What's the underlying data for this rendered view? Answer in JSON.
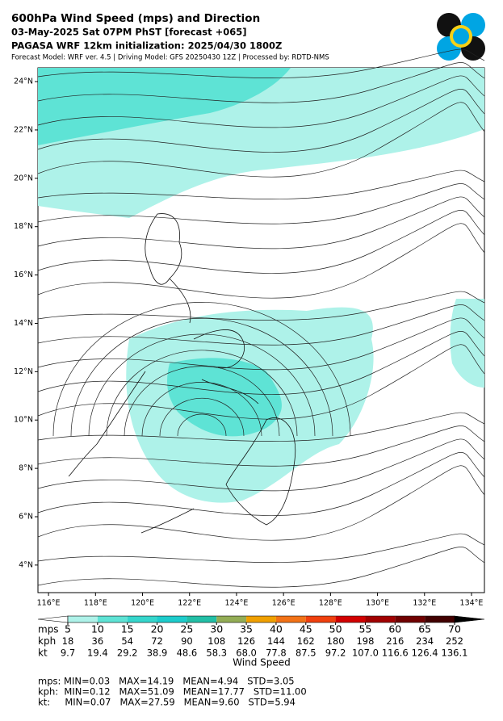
{
  "header": {
    "title": "600hPa Wind Speed (mps) and Direction",
    "line2": "03-May-2025 Sat 07PM PhST [forecast +065]",
    "line3": "PAGASA WRF 12km initialization: 2025/04/30 1800Z",
    "line4": "Forecast Model: WRF ver. 4.5 | Driving Model: GFS 20250430 12Z | Processed by: RDTD-NMS"
  },
  "map": {
    "xlim": [
      115.55,
      134.55
    ],
    "ylim": [
      2.86,
      24.57
    ],
    "xticks": [
      {
        "value": 116,
        "label": "116°E"
      },
      {
        "value": 118,
        "label": "118°E"
      },
      {
        "value": 120,
        "label": "120°E"
      },
      {
        "value": 122,
        "label": "122°E"
      },
      {
        "value": 124,
        "label": "124°E"
      },
      {
        "value": 126,
        "label": "126°E"
      },
      {
        "value": 128,
        "label": "128°E"
      },
      {
        "value": 130,
        "label": "130°E"
      },
      {
        "value": 132,
        "label": "132°E"
      },
      {
        "value": 134,
        "label": "134°E"
      }
    ],
    "yticks": [
      {
        "value": 4,
        "label": "4°N"
      },
      {
        "value": 6,
        "label": "6°N"
      },
      {
        "value": 8,
        "label": "8°N"
      },
      {
        "value": 10,
        "label": "10°N"
      },
      {
        "value": 12,
        "label": "12°N"
      },
      {
        "value": 14,
        "label": "14°N"
      },
      {
        "value": 16,
        "label": "16°N"
      },
      {
        "value": 18,
        "label": "18°N"
      },
      {
        "value": 20,
        "label": "20°N"
      },
      {
        "value": 22,
        "label": "22°N"
      },
      {
        "value": 24,
        "label": "24°N"
      }
    ]
  },
  "colorbar": {
    "row_labels": [
      "mps",
      "kph",
      "kt"
    ],
    "mps": [
      5,
      10,
      15,
      20,
      25,
      30,
      35,
      40,
      45,
      50,
      55,
      60,
      65,
      70
    ],
    "kph": [
      18,
      36,
      54,
      72,
      90,
      108,
      126,
      144,
      162,
      180,
      198,
      216,
      234,
      252
    ],
    "kt": [
      9.7,
      19.4,
      29.2,
      38.9,
      48.6,
      58.3,
      {
        "value": 68,
        "label": "68.0"
      },
      77.8,
      87.5,
      97.2,
      {
        "value": 107,
        "label": "107.0"
      },
      116.6,
      126.4,
      136.1
    ],
    "colors": [
      "#aef2e9",
      "#5ee3d5",
      "#35d6cc",
      "#1dcccc",
      "#22bfa6",
      "#93ad55",
      "#f0a000",
      "#f27216",
      "#f0400e",
      "#d20000",
      "#a10000",
      "#700000",
      "#420000"
    ],
    "under_color": "#ffffff",
    "over_color": "#000000",
    "label": "Wind Speed"
  },
  "stats": [
    "mps: MIN=0.03   MAX=14.19   MEAN=4.94   STD=3.05",
    "kph:  MIN=0.12   MAX=51.09   MEAN=17.77   STD=11.00",
    "kt:     MIN=0.07   MAX=27.59   MEAN=9.60   STD=5.94"
  ]
}
